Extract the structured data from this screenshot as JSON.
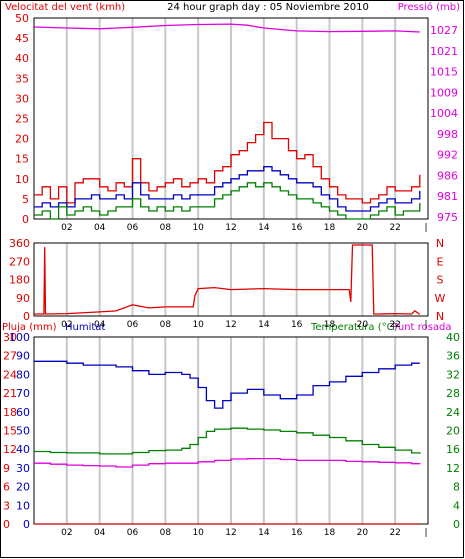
{
  "colors": {
    "background": "#ffffff",
    "frame": "#000000",
    "grid": "#c8c8c8",
    "red": "#e00000",
    "blue": "#0000c0",
    "magenta": "#e000e0",
    "green": "#008000",
    "darkred": "#c00000"
  },
  "chart_data": [
    {
      "type": "line",
      "title": "24 hour graph day : 05 Noviembre 2010",
      "ylabel": "Velocitat del vent (kmh)",
      "y2label": "Pressió (mb)",
      "ylim": [
        0,
        50
      ],
      "y2lim": [
        974,
        1030
      ],
      "yticks": [
        "0",
        "5",
        "10",
        "15",
        "20",
        "25",
        "30",
        "35",
        "40",
        "45",
        "50"
      ],
      "y2ticks": [
        "975",
        "981",
        "986",
        "992",
        "998",
        "1004",
        "1009",
        "1015",
        "1021",
        "1027"
      ],
      "xticks": [
        "02",
        "04",
        "06",
        "08",
        "10",
        "12",
        "14",
        "16",
        "18",
        "20",
        "22"
      ],
      "grid": true,
      "series": [
        {
          "name": "Velocitat del vent (kmh)",
          "kind": "gust",
          "color": "#e00000",
          "x": [
            0,
            0.5,
            1,
            1.5,
            2,
            2.5,
            3,
            3.5,
            4,
            4.5,
            5,
            5.5,
            6,
            6.5,
            7,
            7.5,
            8,
            8.5,
            9,
            9.5,
            10,
            10.5,
            11,
            11.5,
            12,
            12.5,
            13,
            13.5,
            14,
            14.5,
            15,
            15.5,
            16,
            16.5,
            17,
            17.5,
            18,
            18.5,
            19,
            19.5,
            20,
            20.5,
            21,
            21.5,
            22,
            22.5,
            23,
            23.5
          ],
          "values": [
            6,
            8,
            5,
            8,
            4,
            9,
            10,
            10,
            8,
            7,
            9,
            8,
            15,
            9,
            7,
            8,
            9,
            10,
            8,
            9,
            10,
            9,
            12,
            13,
            16,
            17,
            19,
            21,
            24,
            20,
            20,
            17,
            15,
            16,
            13,
            10,
            8,
            6,
            5,
            5,
            4,
            5,
            6,
            8,
            7,
            7,
            8,
            11
          ]
        },
        {
          "name": "Velocitat del vent (kmh)",
          "kind": "average",
          "color": "#0000c0",
          "x": [
            0,
            0.5,
            1,
            1.5,
            2,
            2.5,
            3,
            3.5,
            4,
            4.5,
            5,
            5.5,
            6,
            6.5,
            7,
            7.5,
            8,
            8.5,
            9,
            9.5,
            10,
            10.5,
            11,
            11.5,
            12,
            12.5,
            13,
            13.5,
            14,
            14.5,
            15,
            15.5,
            16,
            16.5,
            17,
            17.5,
            18,
            18.5,
            19,
            19.5,
            20,
            20.5,
            21,
            21.5,
            22,
            22.5,
            23,
            23.5
          ],
          "values": [
            3,
            4,
            3,
            4,
            3,
            5,
            5,
            6,
            5,
            5,
            6,
            5,
            9,
            6,
            5,
            5,
            5,
            6,
            5,
            6,
            6,
            6,
            8,
            9,
            10,
            11,
            12,
            12,
            13,
            12,
            11,
            10,
            9,
            9,
            8,
            6,
            5,
            3,
            2,
            2,
            2,
            3,
            4,
            5,
            4,
            4,
            5,
            7
          ]
        },
        {
          "name": "Velocitat del vent (kmh)",
          "kind": "minimum",
          "color": "#008000",
          "x": [
            0,
            0.5,
            1,
            1.5,
            2,
            2.5,
            3,
            3.5,
            4,
            4.5,
            5,
            5.5,
            6,
            6.5,
            7,
            7.5,
            8,
            8.5,
            9,
            9.5,
            10,
            10.5,
            11,
            11.5,
            12,
            12.5,
            13,
            13.5,
            14,
            14.5,
            15,
            15.5,
            16,
            16.5,
            17,
            17.5,
            18,
            18.5,
            19,
            19.5,
            20,
            20.5,
            21,
            21.5,
            22,
            22.5,
            23,
            23.5
          ],
          "values": [
            1,
            2,
            0,
            3,
            1,
            2,
            3,
            2,
            1,
            2,
            3,
            3,
            5,
            3,
            2,
            3,
            2,
            3,
            2,
            3,
            3,
            3,
            5,
            6,
            7,
            8,
            9,
            8,
            9,
            8,
            7,
            6,
            5,
            5,
            4,
            3,
            2,
            1,
            0,
            0,
            0,
            1,
            2,
            3,
            1,
            2,
            2,
            4
          ]
        },
        {
          "name": "Pressió (mb)",
          "axis": "y2",
          "color": "#e000e0",
          "x": [
            0,
            2,
            4,
            6,
            8,
            10,
            12,
            13,
            14,
            16,
            18,
            20,
            22,
            23.5
          ],
          "values": [
            1027.5,
            1027.2,
            1027.0,
            1027.4,
            1027.9,
            1028.2,
            1028.3,
            1028.0,
            1027.2,
            1026.4,
            1026.2,
            1026.3,
            1026.4,
            1026.1
          ]
        }
      ]
    },
    {
      "type": "line",
      "title": "",
      "ylabel": "",
      "ylim": [
        0,
        360
      ],
      "yticks": [
        "0",
        "90",
        "180",
        "270",
        "360"
      ],
      "compass": [
        "N",
        "W",
        "S",
        "E",
        "N"
      ],
      "xticks": [
        "02",
        "04",
        "06",
        "08",
        "10",
        "12",
        "14",
        "16",
        "18",
        "20",
        "22"
      ],
      "grid": true,
      "series": [
        {
          "name": "",
          "color": "#e00000",
          "x": [
            0,
            0.6,
            0.65,
            0.7,
            2,
            4,
            5,
            6,
            7,
            8,
            9.7,
            9.8,
            10,
            11,
            12,
            14,
            16,
            18,
            19.2,
            19.3,
            19.4,
            20.5,
            20.6,
            20.7,
            21,
            22,
            23,
            23.2,
            23.5
          ],
          "values": [
            10,
            10,
            340,
            10,
            12,
            20,
            25,
            55,
            40,
            45,
            45,
            100,
            135,
            140,
            130,
            135,
            130,
            130,
            130,
            70,
            350,
            350,
            350,
            10,
            10,
            12,
            10,
            25,
            8
          ]
        }
      ]
    },
    {
      "type": "line",
      "title": "",
      "legend": [
        "Pluja (mm)",
        "Humitat",
        "Temperatura (°C)",
        "Punt rosada"
      ],
      "ylabel": "Pluja (mm)",
      "y2label": "Temperatura (°C)",
      "ylim": [
        0,
        30
      ],
      "yticks_rain": [
        "0",
        "3",
        "6",
        "9",
        "12",
        "15",
        "18",
        "21",
        "24",
        "27",
        "30"
      ],
      "yticks_hum": [
        "0",
        "10",
        "20",
        "30",
        "40",
        "50",
        "60",
        "70",
        "80",
        "90",
        "100"
      ],
      "y2lim": [
        0,
        40
      ],
      "y2ticks": [
        "0",
        "4",
        "8",
        "12",
        "16",
        "20",
        "24",
        "28",
        "32",
        "36",
        "40"
      ],
      "xticks": [
        "02",
        "04",
        "06",
        "08",
        "10",
        "12",
        "14",
        "16",
        "18",
        "20",
        "22"
      ],
      "grid": true,
      "series": [
        {
          "name": "Pluja (mm)",
          "axis": "rain",
          "color": "#c00000",
          "x": [
            0,
            23.5
          ],
          "values": [
            0,
            0
          ]
        },
        {
          "name": "Humitat",
          "axis": "hum",
          "color": "#0000c0",
          "x": [
            0,
            1,
            2,
            3,
            4,
            5,
            6,
            7,
            8,
            9,
            9.5,
            10,
            10.5,
            11,
            11.5,
            12,
            13,
            14,
            15,
            16,
            17,
            18,
            19,
            20,
            21,
            22,
            23,
            23.5
          ],
          "values": [
            87,
            87,
            86,
            85,
            85,
            84,
            82,
            80,
            81,
            80,
            78,
            73,
            66,
            62,
            66,
            70,
            72,
            69,
            67,
            69,
            74,
            76,
            79,
            81,
            83,
            85,
            86,
            86
          ]
        },
        {
          "name": "Temperatura (°C)",
          "axis": "y2",
          "color": "#008000",
          "x": [
            0,
            1,
            2,
            3,
            4,
            5,
            6,
            7,
            8,
            9,
            9.5,
            10,
            10.5,
            11,
            12,
            13,
            14,
            15,
            16,
            17,
            18,
            19,
            20,
            21,
            22,
            23,
            23.5
          ],
          "values": [
            15.5,
            15.3,
            15.2,
            15.2,
            15.0,
            15.0,
            15.3,
            15.7,
            15.8,
            16.2,
            17,
            18.5,
            19.8,
            20.3,
            20.5,
            20.3,
            20.1,
            19.8,
            19.5,
            19.0,
            18.5,
            17.8,
            17.0,
            16.4,
            15.8,
            15.2,
            15.0
          ]
        },
        {
          "name": "Punt rosada",
          "axis": "y2",
          "color": "#e000e0",
          "x": [
            0,
            1,
            2,
            3,
            4,
            5,
            6,
            7,
            8,
            9,
            10,
            11,
            12,
            13,
            14,
            15,
            16,
            17,
            18,
            19,
            20,
            21,
            22,
            23,
            23.5
          ],
          "values": [
            13.0,
            12.8,
            12.6,
            12.5,
            12.4,
            12.2,
            12.6,
            12.9,
            13.0,
            13.0,
            13.3,
            13.6,
            13.9,
            14.0,
            14.0,
            13.8,
            13.6,
            13.6,
            13.6,
            13.4,
            13.3,
            13.2,
            13.1,
            12.9,
            12.8
          ]
        }
      ]
    }
  ]
}
